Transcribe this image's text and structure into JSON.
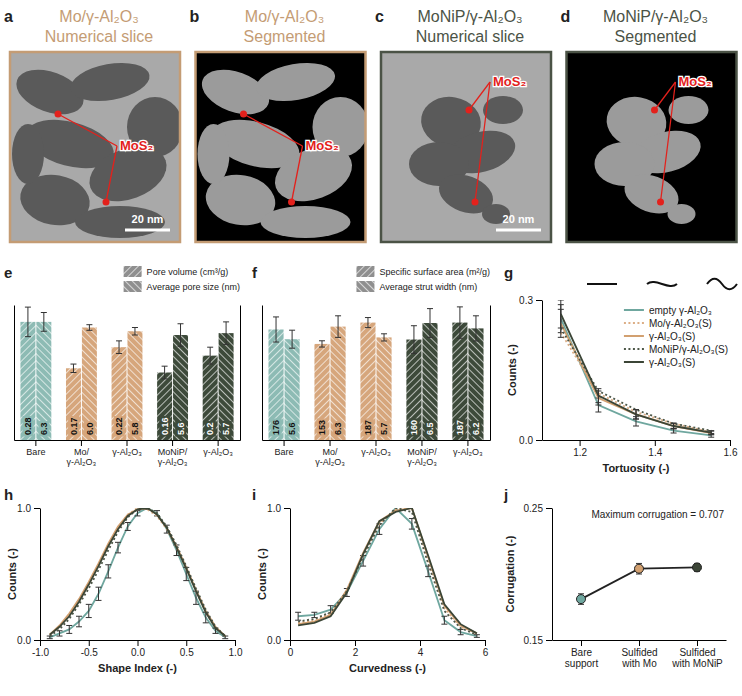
{
  "images": [
    {
      "panel_label": "a",
      "title": "Mo/γ-Al₂O₃",
      "subtitle": "Numerical slice",
      "label": "MoS₂",
      "scale_bar": "20 nm",
      "type": "slice",
      "color": "#c49c74"
    },
    {
      "panel_label": "b",
      "title": "Mo/γ-Al₂O₃",
      "subtitle": "Segmented",
      "label": "MoS₂",
      "type": "segmented",
      "color": "#c49c74"
    },
    {
      "panel_label": "c",
      "title": "MoNiP/γ-Al₂O₃",
      "subtitle": "Numerical slice",
      "label": "MoS₂",
      "scale_bar": "20 nm",
      "type": "slice",
      "color": "#4b5346"
    },
    {
      "panel_label": "d",
      "title": "MoNiP/γ-Al₂O₃",
      "subtitle": "Segmented",
      "label": "MoS₂",
      "type": "segmented",
      "color": "#4b5346"
    }
  ],
  "chart_data": [
    {
      "type": "bar",
      "panel_label": "e",
      "categories": [
        "Bare",
        "Mo/γ-Al₂O₃",
        "γ-Al₂O₃",
        "MoNiP/γ-Al₂O₃",
        "γ-Al₂O₃"
      ],
      "colors": [
        "#8dbbb4",
        "#d6a67c",
        "#d6a67c",
        "#3d4a3a",
        "#3d4a3a"
      ],
      "series": [
        {
          "name": "Pore volume (cm³/g)",
          "values": [
            0.28,
            0.17,
            0.22,
            0.16,
            0.2
          ],
          "errors": [
            0.035,
            0.01,
            0.015,
            0.015,
            0.02
          ]
        },
        {
          "name": "Average pore size (nm)",
          "values": [
            6.3,
            6.0,
            5.8,
            5.6,
            5.7
          ],
          "value_labels": [
            "6.3",
            "6.0",
            "5.8",
            "5.6",
            "5.7"
          ],
          "errors": [
            0.5,
            0.15,
            0.2,
            0.6,
            0.6
          ],
          "axis": "y2"
        }
      ],
      "ylim": [
        0,
        0.32
      ],
      "y2lim": [
        0,
        7.2
      ],
      "data_labels": true,
      "tick_labels": false,
      "legend": "top-right"
    },
    {
      "type": "bar",
      "panel_label": "f",
      "categories": [
        "Bare",
        "Mo/γ-Al₂O₃",
        "γ-Al₂O₃",
        "MoNiP/γ-Al₂O₃",
        "γ-Al₂O₃"
      ],
      "colors": [
        "#8dbbb4",
        "#d6a67c",
        "#d6a67c",
        "#3d4a3a",
        "#3d4a3a"
      ],
      "series": [
        {
          "name": "Specific surface area (m²/g)",
          "values": [
            176,
            153,
            187,
            160,
            187
          ],
          "errors": [
            20,
            5,
            8,
            22,
            25
          ]
        },
        {
          "name": "Average strut width (nm)",
          "values": [
            5.6,
            6.3,
            5.7,
            6.5,
            6.2
          ],
          "errors": [
            0.5,
            0.6,
            0.2,
            0.8,
            0.7
          ],
          "axis": "y2"
        }
      ],
      "ylim": [
        0,
        215
      ],
      "y2lim": [
        0,
        7.5
      ],
      "data_labels": true,
      "tick_labels": false,
      "legend": "top-right"
    },
    {
      "type": "line",
      "panel_label": "g",
      "x_label": "Tortuosity (-)",
      "y_label": "Counts (-)",
      "x": [
        1.15,
        1.25,
        1.35,
        1.45,
        1.55
      ],
      "xlim": [
        1.1,
        1.6
      ],
      "xticks": [
        1.2,
        1.4,
        1.6
      ],
      "ylim": [
        0,
        0.3
      ],
      "yticks": [
        {
          "value": 0,
          "label": "0.0"
        },
        0.3
      ],
      "legend": "top-right",
      "series": [
        {
          "name": "empty γ-Al₂O₃",
          "color": "#6fa79f",
          "line_style": "solid",
          "values": [
            0.26,
            0.075,
            0.04,
            0.02,
            0.01
          ],
          "errors": [
            0.03,
            0.015,
            0.01,
            0.005,
            0.004
          ]
        },
        {
          "name": "Mo/γ-Al₂O₃(S)",
          "color": "#dcae86",
          "line_style": "dotted",
          "values": [
            0.23,
            0.1,
            0.06,
            0.035,
            0.017
          ]
        },
        {
          "name": "γ-Al₂O₃(S)",
          "color": "#d2a070",
          "line_style": "solid",
          "values": [
            0.25,
            0.09,
            0.055,
            0.03,
            0.015
          ],
          "errors": [
            0.03,
            0.015,
            0.01,
            0.006,
            0.004
          ]
        },
        {
          "name": "MoNiP/γ-Al₂O₃(S)",
          "color": "#4d5748",
          "line_style": "dotted",
          "values": [
            0.24,
            0.105,
            0.065,
            0.035,
            0.02
          ]
        },
        {
          "name": "γ-Al₂O₃(S)",
          "color": "#3b4536",
          "line_style": "solid",
          "values": [
            0.27,
            0.095,
            0.055,
            0.03,
            0.016
          ],
          "errors": [
            0.03,
            0.015,
            0.01,
            0.006,
            0.004
          ]
        }
      ]
    },
    {
      "type": "line",
      "panel_label": "h",
      "x_label": "Shape Index (-)",
      "y_label": "Counts (-)",
      "x": [
        -0.9,
        -0.8,
        -0.7,
        -0.6,
        -0.5,
        -0.4,
        -0.3,
        -0.2,
        -0.1,
        0,
        0.1,
        0.2,
        0.3,
        0.4,
        0.5,
        0.6,
        0.7,
        0.8,
        0.9
      ],
      "xlim": [
        -1,
        1
      ],
      "xticks": [
        {
          "value": -1,
          "label": "-1.0"
        },
        -0.5,
        {
          "value": 0,
          "label": "0.0"
        },
        0.5,
        {
          "value": 1,
          "label": "1.0"
        }
      ],
      "ylim": [
        0,
        1
      ],
      "yticks": [
        {
          "value": 0,
          "label": "0.0"
        },
        {
          "value": 1,
          "label": "1.0"
        }
      ],
      "series": [
        {
          "color": "#6fa79f",
          "line_style": "solid",
          "values": [
            0.02,
            0.05,
            0.08,
            0.14,
            0.22,
            0.35,
            0.52,
            0.7,
            0.86,
            0.96,
            1.0,
            0.96,
            0.84,
            0.68,
            0.5,
            0.32,
            0.17,
            0.07,
            0.02
          ],
          "errors": [
            0.01,
            0.02,
            0.03,
            0.04,
            0.05,
            0.05,
            0.05,
            0.04,
            0.03,
            0.02,
            0.01,
            0.02,
            0.03,
            0.04,
            0.05,
            0.05,
            0.04,
            0.02,
            0.01
          ]
        },
        {
          "color": "#dcae86",
          "line_style": "dotted",
          "values": [
            0.04,
            0.1,
            0.19,
            0.3,
            0.42,
            0.57,
            0.72,
            0.85,
            0.95,
            1.0,
            0.99,
            0.94,
            0.84,
            0.7,
            0.54,
            0.37,
            0.21,
            0.09,
            0.03
          ]
        },
        {
          "color": "#d2a070",
          "line_style": "solid",
          "values": [
            0.04,
            0.11,
            0.2,
            0.31,
            0.44,
            0.58,
            0.73,
            0.86,
            0.95,
            0.99,
            1.0,
            0.95,
            0.85,
            0.71,
            0.55,
            0.38,
            0.22,
            0.1,
            0.03
          ]
        },
        {
          "color": "#4d5748",
          "line_style": "dotted",
          "values": [
            0.03,
            0.08,
            0.16,
            0.27,
            0.39,
            0.53,
            0.68,
            0.82,
            0.93,
            0.99,
            1.0,
            0.96,
            0.86,
            0.72,
            0.56,
            0.39,
            0.23,
            0.1,
            0.03
          ]
        },
        {
          "color": "#3b4536",
          "line_style": "solid",
          "values": [
            0.04,
            0.1,
            0.18,
            0.29,
            0.42,
            0.56,
            0.71,
            0.84,
            0.94,
            0.99,
            1.0,
            0.95,
            0.85,
            0.7,
            0.54,
            0.37,
            0.21,
            0.09,
            0.03
          ]
        }
      ]
    },
    {
      "type": "line",
      "panel_label": "i",
      "x_label": "Curvedness (-)",
      "y_label": "Counts (-)",
      "x": [
        0.25,
        0.75,
        1.25,
        1.75,
        2.25,
        2.75,
        3.25,
        3.75,
        4.25,
        4.75,
        5.25,
        5.75
      ],
      "xlim": [
        0,
        6
      ],
      "xticks": [
        0,
        2,
        4,
        6
      ],
      "ylim": [
        0,
        1
      ],
      "yticks": [
        {
          "value": 0,
          "label": "0.0"
        },
        {
          "value": 1,
          "label": "1.0"
        }
      ],
      "series": [
        {
          "color": "#6fa79f",
          "line_style": "solid",
          "values": [
            0.18,
            0.19,
            0.23,
            0.36,
            0.6,
            0.84,
            1.0,
            0.88,
            0.52,
            0.15,
            0.06,
            0.03
          ],
          "errors": [
            0.03,
            0.02,
            0.03,
            0.03,
            0.04,
            0.04,
            0.02,
            0.04,
            0.04,
            0.03,
            0.02,
            0.01
          ]
        },
        {
          "color": "#dcae86",
          "line_style": "dotted",
          "values": [
            0.13,
            0.15,
            0.2,
            0.37,
            0.64,
            0.88,
            0.99,
            1.0,
            0.6,
            0.24,
            0.1,
            0.05
          ]
        },
        {
          "color": "#d2a070",
          "line_style": "solid",
          "values": [
            0.12,
            0.14,
            0.19,
            0.38,
            0.66,
            0.9,
            0.98,
            1.0,
            0.63,
            0.26,
            0.11,
            0.05
          ]
        },
        {
          "color": "#4d5748",
          "line_style": "dotted",
          "values": [
            0.14,
            0.16,
            0.21,
            0.37,
            0.63,
            0.87,
            1.0,
            0.97,
            0.58,
            0.22,
            0.09,
            0.04
          ]
        },
        {
          "color": "#3b4536",
          "line_style": "solid",
          "values": [
            0.11,
            0.13,
            0.18,
            0.36,
            0.65,
            0.9,
            0.97,
            1.0,
            0.64,
            0.27,
            0.12,
            0.05
          ]
        }
      ]
    },
    {
      "type": "line",
      "panel_label": "j",
      "y_label": "Corrugation (-)",
      "categories": [
        "Bare support",
        "Sulfided with Mo",
        "Sulfided with MoNiP"
      ],
      "colors": [
        "#6fa79f",
        "#d2a070",
        "#3b4536"
      ],
      "ylim": [
        0.15,
        0.25
      ],
      "yticks": [
        0.15,
        0.25
      ],
      "annotation": "Maximum corrugation = 0.707",
      "series": [
        {
          "color": "#222222",
          "marker": "circle",
          "line_style": "solid",
          "values": [
            0.181,
            0.204,
            0.205
          ],
          "errors": [
            0.004,
            0.004,
            0.003
          ]
        }
      ]
    }
  ]
}
